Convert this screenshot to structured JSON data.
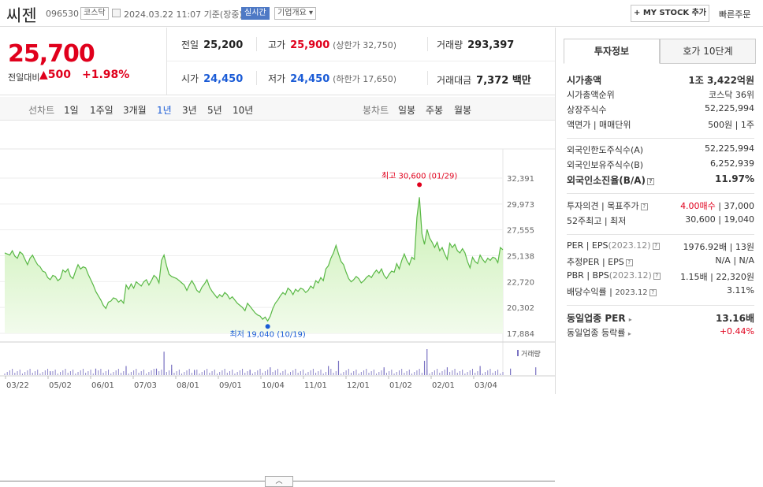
{
  "header": {
    "name": "씨젠",
    "code": "096530",
    "market": "코스닥",
    "datetime": "2024.03.22 11:07 기준(장중)",
    "realtime": "실시간",
    "company_overview": "기업개요",
    "mystock_button": "+ MY STOCK 추가",
    "quick_order": "빠른주문"
  },
  "price": {
    "current": "25,700",
    "change_label": "전일대비",
    "change_arrow": "▲",
    "change": "500",
    "change_pct": "+1.98%"
  },
  "quotes": {
    "prev_label": "전일",
    "prev": "25,200",
    "high_label": "고가",
    "high": "25,900",
    "upper_limit": "(상한가 32,750)",
    "volume_label": "거래량",
    "volume": "293,397",
    "open_label": "시가",
    "open": "24,450",
    "low_label": "저가",
    "low": "24,450",
    "lower_limit": "(하한가 17,650)",
    "amount_label": "거래대금",
    "amount": "7,372 백만"
  },
  "tabs": {
    "line_chart": "선차트",
    "d1": "1일",
    "w1": "1주일",
    "m3": "3개월",
    "y1": "1년",
    "y3": "3년",
    "y5": "5년",
    "y10": "10년",
    "candle_chart": "봉차트",
    "daily": "일봉",
    "weekly": "주봉",
    "monthly": "월봉"
  },
  "chart_data": {
    "type": "area",
    "y_ticks": [
      "32,391",
      "29,973",
      "27,555",
      "25,138",
      "22,720",
      "20,302",
      "17,884"
    ],
    "ylim": [
      17884,
      32391
    ],
    "x_ticks": [
      "03/22",
      "05/02",
      "06/01",
      "07/03",
      "08/01",
      "09/01",
      "10/04",
      "11/01",
      "12/01",
      "01/02",
      "02/01",
      "03/04"
    ],
    "high_annotation": "최고 30,600 (01/29)",
    "low_annotation": "최저 19,040 (10/19)",
    "volume_label": "거래량",
    "series_values": [
      25400,
      25300,
      25200,
      25600,
      25100,
      24900,
      25500,
      25300,
      24800,
      24300,
      24900,
      25200,
      24700,
      24300,
      24100,
      23700,
      23600,
      23100,
      22900,
      23300,
      23200,
      22800,
      23000,
      23800,
      23600,
      23900,
      23200,
      23000,
      23700,
      24300,
      23900,
      24100,
      24000,
      23400,
      22900,
      22400,
      21800,
      21400,
      21000,
      20500,
      20200,
      20800,
      20900,
      21200,
      21100,
      20800,
      21000,
      20700,
      22400,
      22000,
      22500,
      22100,
      22700,
      22500,
      22300,
      22700,
      22900,
      22400,
      22800,
      23300,
      23100,
      22600,
      24700,
      25200,
      24200,
      23400,
      23200,
      23100,
      23000,
      22800,
      22600,
      22400,
      21900,
      22400,
      22800,
      22400,
      21900,
      21700,
      22200,
      22500,
      22900,
      22200,
      21800,
      21500,
      21200,
      21500,
      21300,
      21700,
      21500,
      21100,
      21300,
      21000,
      20700,
      20500,
      20300,
      20000,
      20700,
      20400,
      20100,
      19800,
      19600,
      19500,
      19200,
      19400,
      19040,
      19500,
      20200,
      20700,
      21000,
      21400,
      21700,
      21500,
      22100,
      21900,
      21500,
      22000,
      21800,
      22100,
      22000,
      21700,
      21900,
      22300,
      22100,
      22800,
      22600,
      23100,
      22800,
      23900,
      24200,
      24900,
      25400,
      26100,
      25300,
      24600,
      24300,
      23600,
      23000,
      22700,
      22900,
      23200,
      23000,
      22600,
      22800,
      23100,
      23300,
      23100,
      23500,
      23800,
      23500,
      23900,
      23300,
      23000,
      23400,
      23700,
      23600,
      24400,
      23900,
      24700,
      25300,
      24700,
      24300,
      25000,
      24800,
      28700,
      30600,
      27200,
      26200,
      27600,
      26800,
      26400,
      25900,
      26400,
      25600,
      25900,
      25300,
      24800,
      26300,
      25900,
      26200,
      25600,
      25400,
      25800,
      25400,
      24600,
      24000,
      25000,
      24600,
      24400,
      25200,
      24800,
      24500,
      24900,
      24700,
      25000,
      24900,
      24500,
      25900,
      25700
    ],
    "volume_spikes": [
      [
        18,
        0.15
      ],
      [
        36,
        0.25
      ],
      [
        48,
        0.35
      ],
      [
        60,
        0.25
      ],
      [
        63,
        0.9
      ],
      [
        66,
        0.4
      ],
      [
        75,
        0.2
      ],
      [
        97,
        0.2
      ],
      [
        105,
        0.3
      ],
      [
        128,
        0.35
      ],
      [
        132,
        0.55
      ],
      [
        150,
        0.3
      ],
      [
        166,
        0.55
      ],
      [
        175,
        0.3
      ],
      [
        167,
        1.0
      ],
      [
        188,
        0.35
      ],
      [
        200,
        0.25
      ],
      [
        210,
        0.3
      ]
    ]
  },
  "invest": {
    "tab_active": "투자정보",
    "tab_other": "호가 10단계",
    "market_cap_label": "시가총액",
    "market_cap": "1조 3,422억원",
    "rank_label": "시가총액순위",
    "rank": "코스닥 36위",
    "shares_label": "상장주식수",
    "shares": "52,225,994",
    "face_label": "액면가 | 매매단위",
    "face": "500원 | 1주",
    "foreign_limit_label": "외국인한도주식수(A)",
    "foreign_limit": "52,225,994",
    "foreign_hold_label": "외국인보유주식수(B)",
    "foreign_hold": "6,252,939",
    "foreign_ratio_label": "외국인소진율(B/A)",
    "foreign_ratio": "11.97%",
    "opinion_label": "투자의견 | 목표주가",
    "opinion": "4.00매수",
    "target": "37,000",
    "w52_label": "52주최고 | 최저",
    "w52_high": "30,600",
    "w52_low": "19,040",
    "per_label": "PER | EPS",
    "per_period": "(2023.12)",
    "per": "1976.92배",
    "eps": "13원",
    "est_label": "추정PER | EPS",
    "est_per": "N/A",
    "est_eps": "N/A",
    "pbr_label": "PBR | BPS",
    "pbr_period": "(2023.12)",
    "pbr": "1.15배",
    "bps": "22,320원",
    "div_label": "배당수익률",
    "div_period": "2023.12",
    "div": "3.11%",
    "sector_per_label": "동일업종 PER",
    "sector_per": "13.16배",
    "sector_rate_label": "동일업종 등락률",
    "sector_rate": "+0.44%"
  }
}
